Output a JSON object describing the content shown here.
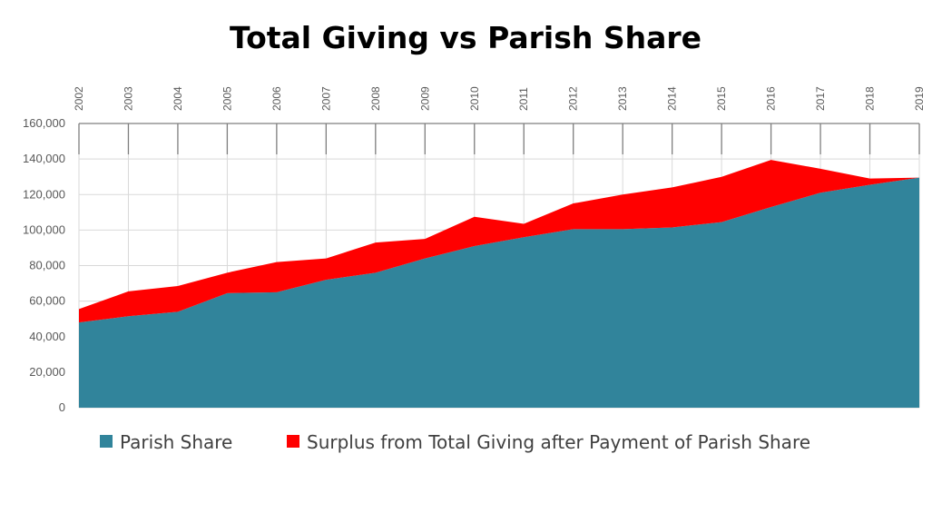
{
  "chart_data": {
    "type": "area",
    "stacked": true,
    "title": "Total Giving vs Parish Share",
    "x": [
      "2002",
      "2003",
      "2004",
      "2005",
      "2006",
      "2007",
      "2008",
      "2009",
      "2010",
      "2011",
      "2012",
      "2013",
      "2014",
      "2015",
      "2016",
      "2017",
      "2018",
      "2019"
    ],
    "x_axis_position": "top",
    "yticks": [
      "160,000",
      "140,000",
      "120,000",
      "100,000",
      "80,000",
      "60,000",
      "40,000",
      "20,000",
      "0"
    ],
    "ylim": [
      0,
      160000
    ],
    "grid": true,
    "legend_position": "bottom",
    "series": [
      {
        "name": "Parish Share",
        "color": "#31849b",
        "values": [
          48000,
          51500,
          54000,
          64500,
          65000,
          72000,
          76000,
          84000,
          91000,
          96000,
          100500,
          100500,
          101500,
          104500,
          113000,
          121000,
          125500,
          129500
        ]
      },
      {
        "name": "Surplus from Total Giving after Payment of Parish Share",
        "color": "#ff0000",
        "values": [
          7500,
          14000,
          14500,
          11500,
          17000,
          12000,
          17000,
          11000,
          16500,
          7500,
          14500,
          19500,
          22500,
          25500,
          26500,
          13500,
          3500,
          0
        ]
      }
    ]
  }
}
